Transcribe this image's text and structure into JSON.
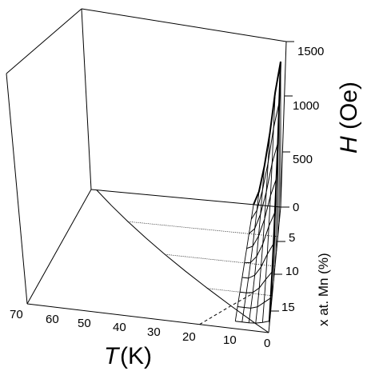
{
  "chart_data": {
    "type": "surface",
    "title": "",
    "axes": {
      "T": {
        "symbol": "T",
        "unit": "(K)",
        "ticks": [
          "70",
          "60",
          "50",
          "40",
          "30",
          "20",
          "10",
          "0"
        ],
        "range": [
          0,
          70
        ]
      },
      "x": {
        "label": "x at. Mn (%)",
        "ticks": [
          "0",
          "5",
          "10",
          "15"
        ],
        "range": [
          0,
          17
        ]
      },
      "H": {
        "symbol": "H",
        "unit": "(Oe)",
        "ticks": [
          "0",
          "500",
          "1000",
          "1500"
        ],
        "range": [
          0,
          1700
        ]
      }
    },
    "phase_boundary_on_floor": {
      "x": [
        0,
        2,
        4,
        6,
        8,
        10,
        12,
        14,
        16,
        17
      ],
      "T": [
        68,
        60,
        52,
        44,
        36,
        28,
        20,
        12,
        4,
        0
      ]
    },
    "critical_field_curves": [
      {
        "x": 0,
        "T": [
          0,
          2,
          4,
          6,
          8,
          10
        ],
        "H": [
          1400,
          1100,
          700,
          380,
          130,
          0
        ]
      },
      {
        "x": 2,
        "T": [
          0,
          2,
          4,
          6,
          8,
          10
        ],
        "H": [
          1150,
          900,
          560,
          290,
          90,
          0
        ]
      },
      {
        "x": 4,
        "T": [
          0,
          2,
          4,
          6,
          8,
          10
        ],
        "H": [
          900,
          700,
          420,
          200,
          55,
          0
        ]
      },
      {
        "x": 6,
        "T": [
          0,
          2,
          4,
          6,
          8,
          10
        ],
        "H": [
          700,
          530,
          300,
          130,
          25,
          0
        ]
      },
      {
        "x": 8,
        "T": [
          0,
          2,
          4,
          6,
          8,
          10
        ],
        "H": [
          520,
          380,
          200,
          75,
          10,
          0
        ]
      },
      {
        "x": 10,
        "T": [
          0,
          2,
          4,
          6,
          8,
          10
        ],
        "H": [
          360,
          250,
          120,
          35,
          0,
          0
        ]
      },
      {
        "x": 12,
        "T": [
          0,
          2,
          4,
          6,
          8,
          10
        ],
        "H": [
          230,
          150,
          60,
          10,
          0,
          0
        ]
      },
      {
        "x": 14,
        "T": [
          0,
          2,
          4,
          6,
          8,
          10
        ],
        "H": [
          120,
          70,
          20,
          0,
          0,
          0
        ]
      },
      {
        "x": 16,
        "T": [
          0,
          2,
          4,
          6,
          8,
          10
        ],
        "H": [
          40,
          20,
          5,
          0,
          0,
          0
        ]
      }
    ]
  }
}
